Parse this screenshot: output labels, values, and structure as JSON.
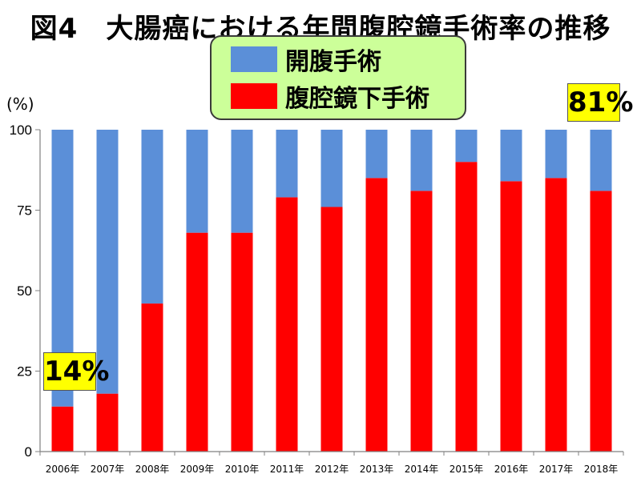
{
  "title": "図4　大腸癌における年間腹腔鏡手術率の推移",
  "y_unit": "(%)",
  "colors": {
    "open": "#5b8fd8",
    "laparoscopic": "#ff0000",
    "legend_bg": "#ccff99",
    "callout_bg": "#ffff00"
  },
  "callouts": {
    "left": "14%",
    "right": "81%"
  },
  "chart_data": {
    "type": "bar",
    "stacked": true,
    "categories": [
      "2006年",
      "2007年",
      "2008年",
      "2009年",
      "2010年",
      "2011年",
      "2012年",
      "2013年",
      "2014年",
      "2015年",
      "2016年",
      "2017年",
      "2018年"
    ],
    "series": [
      {
        "name": "腹腔鏡下手術",
        "values": [
          14,
          18,
          46,
          68,
          68,
          79,
          76,
          85,
          81,
          90,
          84,
          85,
          81
        ]
      },
      {
        "name": "開腹手術",
        "values": [
          86,
          82,
          54,
          32,
          32,
          21,
          24,
          15,
          19,
          10,
          16,
          15,
          19
        ]
      }
    ],
    "legend": [
      "開腹手術",
      "腹腔鏡下手術"
    ],
    "ylim": [
      0,
      100
    ],
    "yticks": [
      0,
      25,
      50,
      75,
      100
    ],
    "grid": false,
    "legend_position": "top-center"
  }
}
